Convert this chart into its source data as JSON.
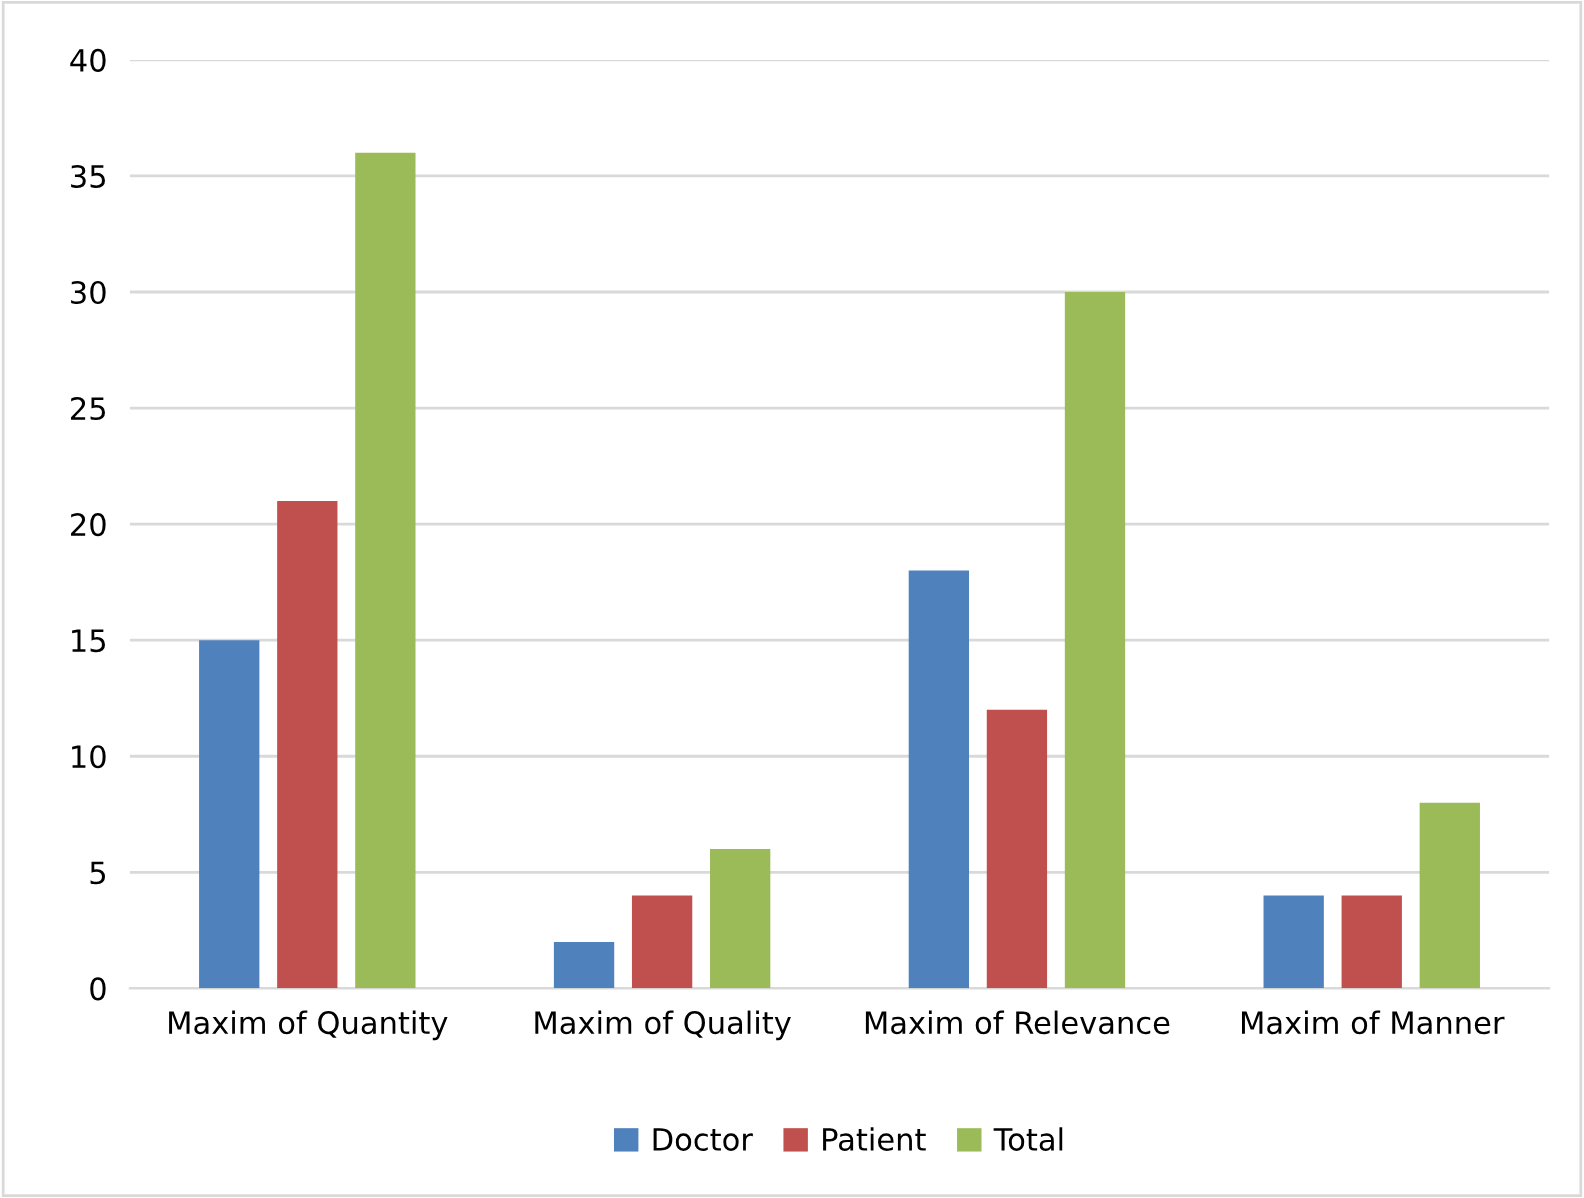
{
  "chart_data": {
    "type": "bar",
    "categories": [
      "Maxim of Quantity",
      "Maxim of Quality",
      "Maxim of Relevance",
      "Maxim of Manner"
    ],
    "series": [
      {
        "name": "Doctor",
        "color": "#4f81bd",
        "values": [
          15,
          2,
          18,
          4
        ]
      },
      {
        "name": "Patient",
        "color": "#c0504d",
        "values": [
          21,
          4,
          12,
          4
        ]
      },
      {
        "name": "Total",
        "color": "#9bbb59",
        "values": [
          36,
          6,
          30,
          8
        ]
      }
    ],
    "ylim": [
      0,
      40
    ],
    "yticks": [
      0,
      5,
      10,
      15,
      20,
      25,
      30,
      35,
      40
    ],
    "grid": "y",
    "legend": "bottom"
  }
}
